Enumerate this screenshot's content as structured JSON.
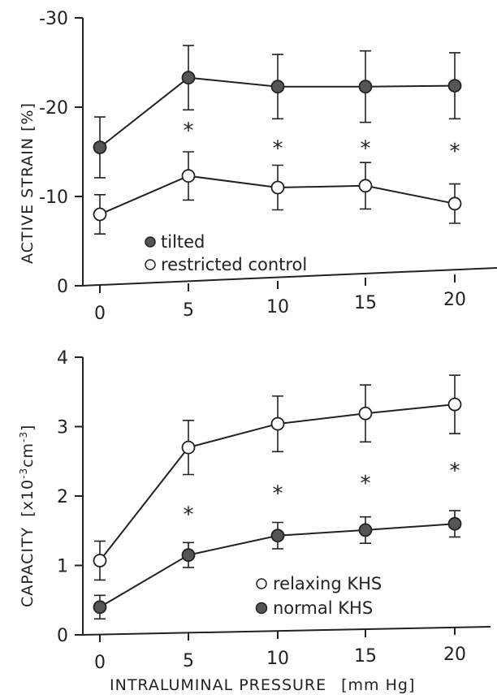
{
  "chart_data": [
    {
      "type": "line",
      "ylabel": "ACTIVE STRAIN",
      "yunit": "[%]",
      "x": [
        0,
        5,
        10,
        15,
        20
      ],
      "xticks": [
        "0",
        "5",
        "10",
        "15",
        "20"
      ],
      "ylim": [
        0,
        -30
      ],
      "yticks": [
        "0",
        "-10",
        "-20",
        "-30"
      ],
      "yticks_values": [
        0,
        -10,
        -20,
        -30
      ],
      "series": [
        {
          "name": "tilted",
          "marker": "filled",
          "values": [
            -15.5,
            -23.3,
            -22.3,
            -22.3,
            -22.4
          ],
          "errors": [
            3.4,
            3.6,
            3.6,
            4.0,
            3.7
          ]
        },
        {
          "name": "restricted control",
          "marker": "open",
          "values": [
            -8.0,
            -12.3,
            -11.0,
            -11.2,
            -9.2
          ],
          "errors": [
            2.2,
            2.7,
            2.5,
            2.6,
            2.2
          ]
        }
      ],
      "significance": {
        "marker": "*",
        "x": [
          5,
          10,
          15,
          20
        ],
        "y": [
          -17.5,
          -15.5,
          -15.5,
          -15.2
        ]
      },
      "legend_position": "bottom-left"
    },
    {
      "type": "line",
      "ylabel": "CAPACITY",
      "yunit_prefix": "[x10",
      "yunit_sup1": "-3",
      "yunit_mid": "cm",
      "yunit_sup2": "-3",
      "yunit_suffix": "]",
      "xlabel": "INTRALUMINAL PRESSURE",
      "xunit": "[mm Hg]",
      "x": [
        0,
        5,
        10,
        15,
        20
      ],
      "xticks": [
        "0",
        "5",
        "10",
        "15",
        "20"
      ],
      "ylim": [
        0,
        4
      ],
      "yticks": [
        "0",
        "1",
        "2",
        "3",
        "4"
      ],
      "yticks_values": [
        0,
        1,
        2,
        3,
        4
      ],
      "series": [
        {
          "name": "relaxing KHS",
          "marker": "open",
          "values": [
            1.07,
            2.7,
            3.04,
            3.19,
            3.32
          ],
          "errors": [
            0.28,
            0.39,
            0.4,
            0.41,
            0.42
          ]
        },
        {
          "name": "normal KHS",
          "marker": "filled",
          "values": [
            0.4,
            1.15,
            1.43,
            1.51,
            1.6
          ],
          "errors": [
            0.17,
            0.18,
            0.19,
            0.19,
            0.19
          ]
        }
      ],
      "significance": {
        "marker": "*",
        "x": [
          5,
          10,
          15,
          20
        ],
        "y": [
          1.75,
          2.05,
          2.2,
          2.38
        ]
      },
      "legend_position": "bottom-right"
    }
  ]
}
